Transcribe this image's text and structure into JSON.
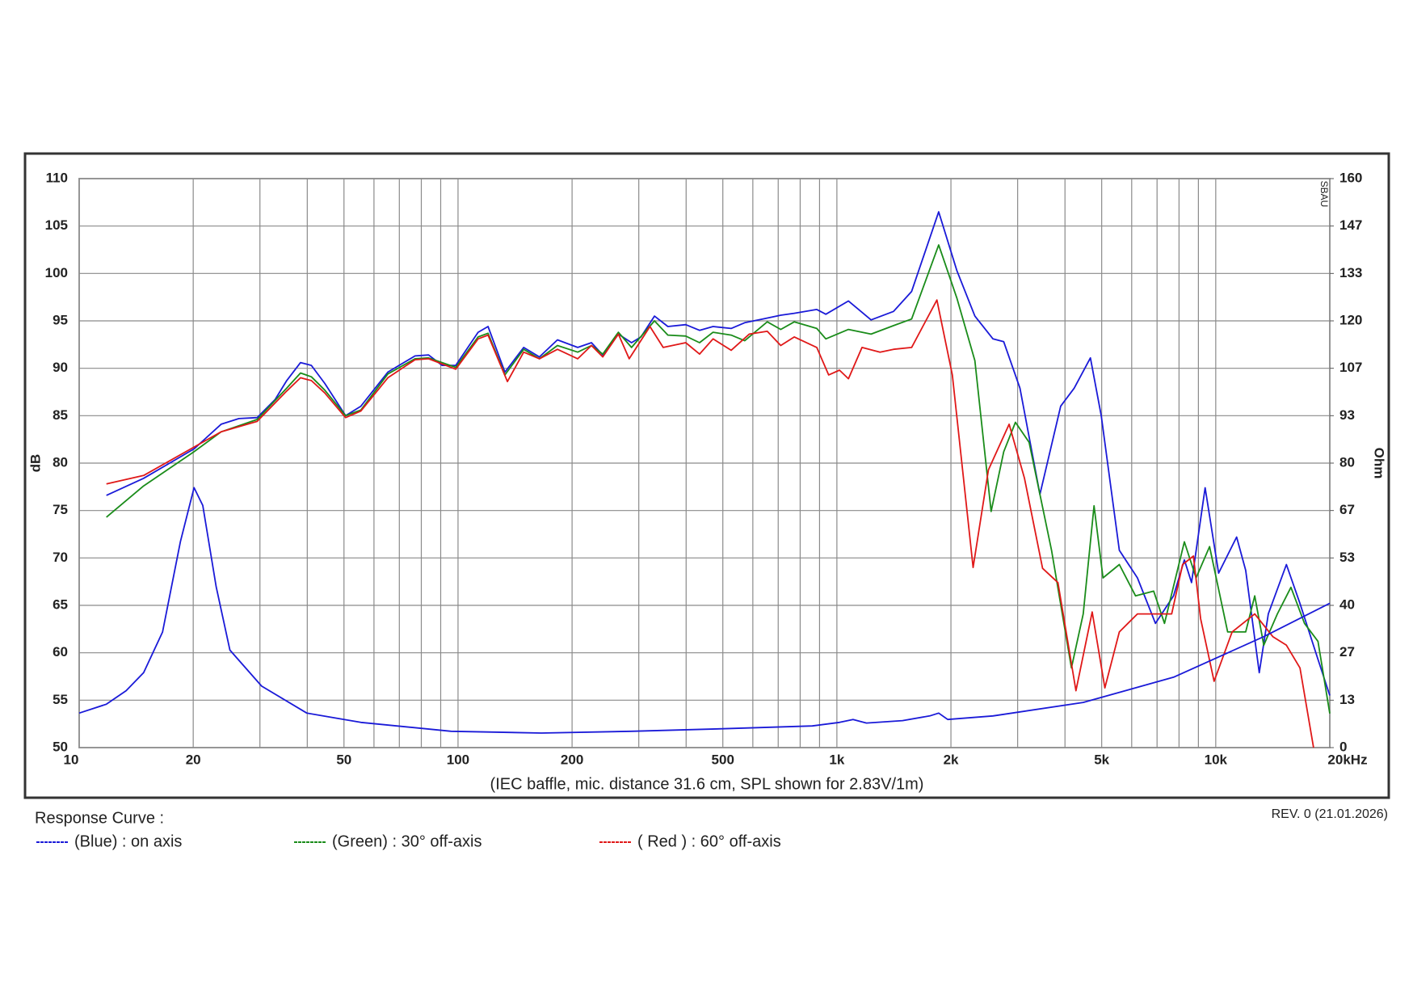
{
  "chart_data": {
    "type": "line",
    "xlabel": "(IEC baffle, mic. distance 31.6 cm, SPL shown for 2.83V/1m)",
    "ylabel": "dB",
    "y2label": "Ohm",
    "revision": "REV. 0 (21.01.2026)",
    "watermark": "SBAU",
    "legend_title": "Response Curve :",
    "xscale": "log",
    "grid": true,
    "xlim": [
      10,
      20000
    ],
    "ylim": [
      50,
      110
    ],
    "y2lim": [
      0,
      160
    ],
    "xticks": [
      10,
      20,
      50,
      100,
      200,
      500,
      {
        "value": 1000,
        "label": "1k"
      },
      {
        "value": 2000,
        "label": "2k"
      },
      {
        "value": 5000,
        "label": "5k"
      },
      {
        "value": 10000,
        "label": "10k"
      },
      {
        "value": 20000,
        "label": "20kHz"
      }
    ],
    "xgrid": [
      30,
      40,
      60,
      70,
      80,
      90,
      300,
      400,
      600,
      700,
      800,
      900,
      3000,
      4000,
      6000,
      7000,
      8000,
      9000
    ],
    "yticks": [
      50,
      55,
      60,
      65,
      70,
      75,
      80,
      85,
      90,
      95,
      100,
      105,
      110
    ],
    "y2ticks": [
      0,
      {
        "value": 13.333,
        "label": "13"
      },
      {
        "value": 26.667,
        "label": "27"
      },
      40,
      {
        "value": 53.333,
        "label": "53"
      },
      {
        "value": 66.667,
        "label": "67"
      },
      80,
      {
        "value": 93.333,
        "label": "93"
      },
      {
        "value": 106.667,
        "label": "107"
      },
      120,
      {
        "value": 133.333,
        "label": "133"
      },
      {
        "value": 146.667,
        "label": "147"
      },
      160
    ],
    "series": [
      {
        "name": "(Blue)  : on axis",
        "color": "#1a1ad8",
        "x": [
          11.8,
          14.8,
          20.1,
          23.7,
          26.4,
          29.5,
          32.9,
          35.3,
          38.4,
          41.0,
          44.5,
          50.5,
          55.4,
          65.3,
          77.0,
          83.6,
          90.8,
          98.6,
          113,
          120,
          133,
          149,
          164,
          183,
          207,
          225,
          241,
          265,
          287,
          304,
          330,
          358,
          399,
          434,
          471,
          526,
          571,
          637,
          711,
          772,
          885,
          935,
          1073,
          1231,
          1411,
          1575,
          1857,
          2073,
          2313,
          2582,
          2757,
          3043,
          3435,
          3896,
          4229,
          4669,
          4987,
          5566,
          6212,
          6933,
          7737,
          8264,
          8634,
          9374,
          10176,
          11356,
          11999,
          13029,
          13765,
          15367,
          16686,
          18618,
          20000
        ],
        "values": [
          76.6,
          78.4,
          81.5,
          84.1,
          84.7,
          84.8,
          86.7,
          88.7,
          90.6,
          90.3,
          88.4,
          85.0,
          86.0,
          89.6,
          91.3,
          91.4,
          90.3,
          90.3,
          93.8,
          94.4,
          89.6,
          92.2,
          91.2,
          93.0,
          92.2,
          92.7,
          91.4,
          93.6,
          92.7,
          93.3,
          95.5,
          94.4,
          94.6,
          94.0,
          94.4,
          94.2,
          94.8,
          95.2,
          95.6,
          95.8,
          96.2,
          95.7,
          97.1,
          95.1,
          96.0,
          98.1,
          106.5,
          100.3,
          95.5,
          93.1,
          92.8,
          87.9,
          76.7,
          86.0,
          87.9,
          91.1,
          85.0,
          70.8,
          67.9,
          63.1,
          66.0,
          69.8,
          67.4,
          77.4,
          68.4,
          72.2,
          68.7,
          57.9,
          64.1,
          69.3,
          65.2,
          59.3,
          55.5
        ]
      },
      {
        "name": "(Green) : 30° off-axis",
        "color": "#1a8c1a",
        "x": [
          11.8,
          14.8,
          20.1,
          23.7,
          29.5,
          35.3,
          38.4,
          41.0,
          44.5,
          50.5,
          55.4,
          65.3,
          77.0,
          83.6,
          98.6,
          113,
          120,
          133,
          149,
          164,
          183,
          207,
          225,
          241,
          265,
          287,
          330,
          358,
          399,
          434,
          471,
          526,
          571,
          655,
          711,
          772,
          885,
          935,
          1073,
          1231,
          1411,
          1575,
          1857,
          2073,
          2313,
          2553,
          2757,
          2960,
          3216,
          3687,
          4160,
          4468,
          4772,
          5041,
          5566,
          6142,
          6858,
          7322,
          8264,
          8875,
          9634,
          10750,
          11999,
          12677,
          13394,
          14541,
          15792,
          17151,
          18618,
          20000
        ],
        "values": [
          74.3,
          77.6,
          81.2,
          83.3,
          84.6,
          87.9,
          89.5,
          89.1,
          87.7,
          85.0,
          85.6,
          89.4,
          91.0,
          91.1,
          90.1,
          93.3,
          93.7,
          89.3,
          92.0,
          91.0,
          92.4,
          91.7,
          92.4,
          91.5,
          93.8,
          92.2,
          95.0,
          93.5,
          93.4,
          92.7,
          93.8,
          93.5,
          92.9,
          94.9,
          94.1,
          94.9,
          94.2,
          93.1,
          94.1,
          93.6,
          94.5,
          95.2,
          103.0,
          97.4,
          90.8,
          74.9,
          81.2,
          84.3,
          82.2,
          70.8,
          58.4,
          64.1,
          75.5,
          67.9,
          69.3,
          66.0,
          66.5,
          63.1,
          71.7,
          67.9,
          71.2,
          62.2,
          62.2,
          66.0,
          60.8,
          64.1,
          66.9,
          63.1,
          61.2,
          53.6
        ]
      },
      {
        "name": "( Red ) : 60° off-axis",
        "color": "#e01818",
        "x": [
          11.8,
          14.8,
          20.1,
          23.7,
          29.5,
          35.3,
          38.4,
          41.0,
          44.5,
          50.5,
          55.4,
          65.3,
          77.0,
          83.6,
          98.6,
          113,
          120,
          135,
          149,
          164,
          183,
          207,
          225,
          241,
          265,
          283,
          321,
          348,
          399,
          434,
          471,
          526,
          587,
          655,
          711,
          772,
          885,
          951,
          1016,
          1073,
          1165,
          1300,
          1411,
          1575,
          1837,
          2017,
          2288,
          2512,
          2849,
          3128,
          3491,
          3832,
          4276,
          4720,
          5097,
          5566,
          6212,
          6933,
          7652,
          8174,
          8730,
          9120,
          9901,
          11049,
          12677,
          14145,
          15367,
          16686,
          18116
        ],
        "values": [
          77.8,
          78.7,
          81.7,
          83.3,
          84.4,
          87.6,
          89.0,
          88.7,
          87.4,
          84.8,
          85.5,
          89.0,
          90.9,
          91.0,
          89.9,
          93.1,
          93.5,
          88.6,
          91.7,
          91.0,
          92.0,
          91.0,
          92.4,
          91.2,
          93.6,
          91.0,
          94.4,
          92.2,
          92.7,
          91.5,
          93.1,
          91.9,
          93.6,
          93.9,
          92.4,
          93.3,
          92.2,
          89.3,
          89.8,
          88.9,
          92.2,
          91.7,
          92.0,
          92.2,
          97.2,
          89.3,
          69.0,
          79.3,
          84.1,
          78.4,
          68.9,
          67.4,
          56.0,
          64.3,
          56.3,
          62.2,
          64.1,
          64.1,
          64.1,
          69.3,
          70.2,
          63.6,
          57.0,
          62.2,
          64.1,
          61.7,
          60.8,
          58.4,
          50.0
        ]
      },
      {
        "color": "#1a1ad8",
        "axis": "y2",
        "x": [
          10,
          11.8,
          13.3,
          14.8,
          16.6,
          18.5,
          20.1,
          21.2,
          23.0,
          25.0,
          30.3,
          39.9,
          55.4,
          95.9,
          166,
          287,
          498,
          861,
          1016,
          1103,
          1197,
          1491,
          1758,
          1857,
          1962,
          2582,
          4468,
          7737,
          13394,
          20000
        ],
        "values": [
          9.7,
          12.2,
          16.0,
          21.1,
          32.5,
          57.9,
          73.1,
          68.1,
          45.2,
          27.4,
          17.3,
          9.7,
          7.1,
          4.6,
          4.1,
          4.6,
          5.3,
          6.1,
          7.1,
          7.9,
          6.9,
          7.6,
          8.9,
          9.7,
          7.9,
          8.9,
          12.7,
          19.8,
          31.2,
          40.6
        ]
      }
    ]
  }
}
